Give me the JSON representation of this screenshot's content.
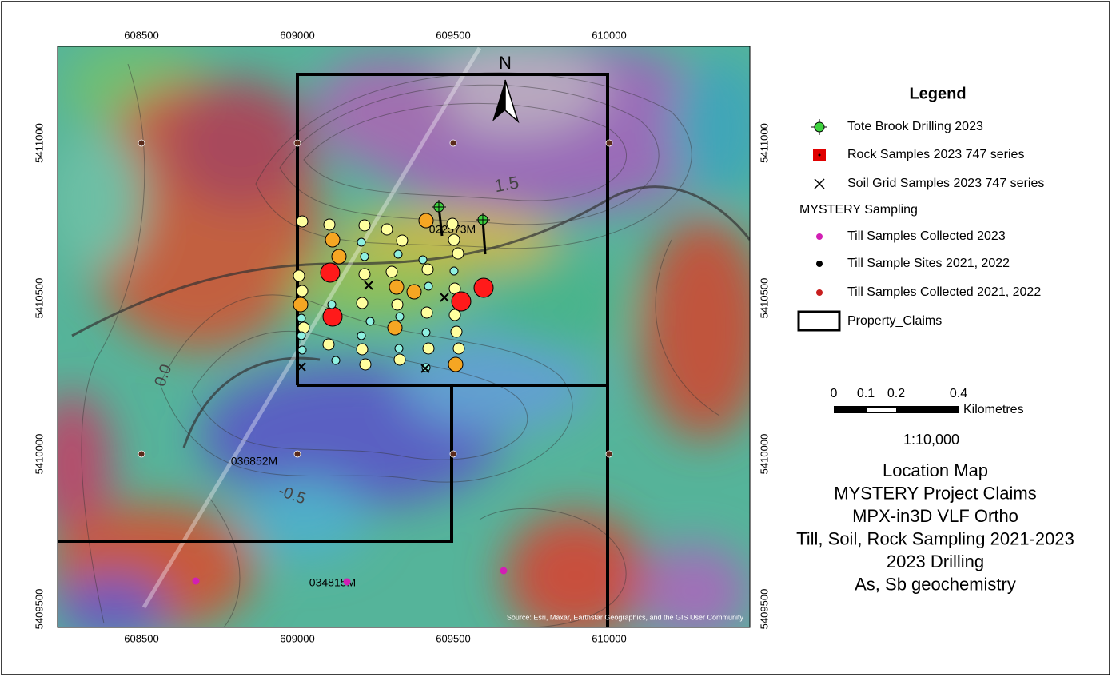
{
  "map": {
    "grid_labels": {
      "top": [
        "608500",
        "609000",
        "609500",
        "610000"
      ],
      "bottom": [
        "608500",
        "609000",
        "609500",
        "610000"
      ],
      "left": [
        "5411000",
        "5410500",
        "5410000",
        "5409500"
      ],
      "right": [
        "5411000",
        "5410500",
        "5410000",
        "5409500"
      ]
    },
    "north": "N",
    "claims": [
      "022573M",
      "036852M",
      "034815M"
    ],
    "contours": [
      "1.5",
      "0.0",
      "-0.5"
    ],
    "source": "Source: Esri, Maxar, Earthstar Geographics, and the GIS User Community"
  },
  "legend": {
    "title": "Legend",
    "entries": [
      "Tote Brook Drilling 2023",
      "Rock Samples 2023 747 series",
      "Soil Grid Samples 2023 747 series",
      "MYSTERY Sampling",
      "Till Samples Collected 2023",
      "Till Sample Sites 2021, 2022",
      "Till Samples Collected 2021, 2022",
      "Property_Claims"
    ]
  },
  "scale": {
    "ticks": [
      "0",
      "0.1",
      "0.2",
      "0.4"
    ],
    "unit": "Kilometres",
    "ratio": "1:10,000"
  },
  "title_lines": [
    "Location Map",
    "MYSTERY Project Claims",
    "MPX-in3D VLF Ortho",
    "Till, Soil, Rock Sampling 2021-2023",
    "2023 Drilling",
    "As, Sb geochemistry"
  ]
}
